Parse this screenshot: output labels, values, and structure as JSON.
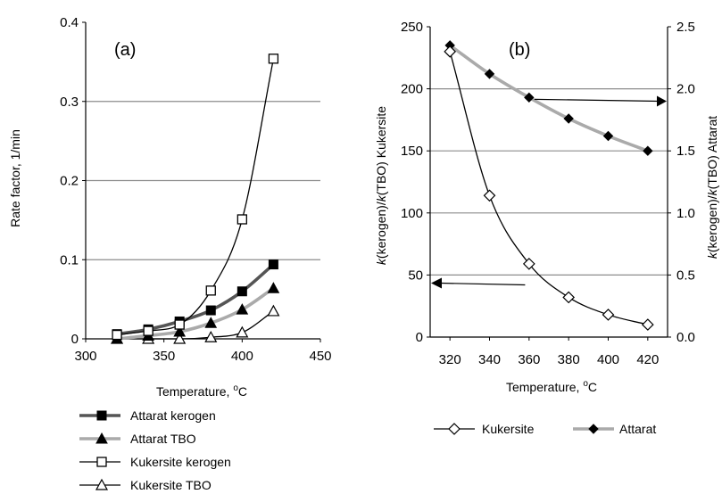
{
  "chart_data": [
    {
      "type": "line",
      "panel_label": "(a)",
      "xlabel": "Temperature, ",
      "xlabel_sup": "o",
      "xlabel_unit": "C",
      "ylabel": "Rate factor, 1/min",
      "xlim": [
        300,
        450
      ],
      "ylim": [
        0,
        0.4
      ],
      "xticks": [
        "300",
        "350",
        "400",
        "450"
      ],
      "yticks": [
        "0",
        "0.1",
        "0.2",
        "0.3",
        "0.4"
      ],
      "grid": "horizontal",
      "legend_position": "below",
      "series": [
        {
          "name": "Attarat kerogen",
          "color": "#555555",
          "marker": "filled-square",
          "line_color": "#555555",
          "x": [
            320,
            340,
            360,
            380,
            400,
            420
          ],
          "y": [
            0.006,
            0.012,
            0.022,
            0.036,
            0.06,
            0.094
          ]
        },
        {
          "name": "Attarat TBO",
          "color": "#aaaaaa",
          "marker": "filled-triangle",
          "line_color": "#aaaaaa",
          "x": [
            320,
            340,
            360,
            380,
            400,
            420
          ],
          "y": [
            0.0,
            0.004,
            0.009,
            0.02,
            0.037,
            0.064
          ]
        },
        {
          "name": "Kukersite kerogen",
          "color": "#000000",
          "marker": "open-square",
          "line_color": "#000000",
          "x": [
            320,
            340,
            360,
            380,
            400,
            420
          ],
          "y": [
            0.005,
            0.01,
            0.018,
            0.061,
            0.151,
            0.354
          ]
        },
        {
          "name": "Kukersite TBO",
          "color": "#000000",
          "marker": "open-triangle",
          "line_color": "#000000",
          "x": [
            320,
            340,
            360,
            380,
            400,
            420
          ],
          "y": [
            0.0,
            0.0,
            0.0,
            0.002,
            0.008,
            0.035
          ]
        }
      ]
    },
    {
      "type": "line",
      "panel_label": "(b)",
      "xlabel": "Temperature, ",
      "xlabel_sup": "o",
      "xlabel_unit": "C",
      "ylabel_left": "k(kerogen)/k(TBO) Kukersite",
      "ylabel_right": "k(kerogen)/k(TBO) Attarat",
      "xlim": [
        310,
        430
      ],
      "xticks": [
        "320",
        "340",
        "360",
        "380",
        "400",
        "420"
      ],
      "ylim_left": [
        0,
        250
      ],
      "yticks_left": [
        "0",
        "50",
        "100",
        "150",
        "200",
        "250"
      ],
      "ylim_right": [
        0,
        2.5
      ],
      "yticks_right": [
        "0.0",
        "0.5",
        "1.0",
        "1.5",
        "2.0",
        "2.5"
      ],
      "grid": "horizontal",
      "legend_position": "below",
      "series": [
        {
          "name": "Kukersite",
          "axis": "left",
          "color": "#000000",
          "marker": "open-diamond",
          "line_color": "#000000",
          "x": [
            320,
            340,
            360,
            380,
            400,
            420
          ],
          "y": [
            230,
            114,
            59,
            32,
            18,
            10
          ]
        },
        {
          "name": "Attarat",
          "axis": "right",
          "color": "#000000",
          "marker": "filled-diamond",
          "line_color": "#aaaaaa",
          "x": [
            320,
            340,
            360,
            380,
            400,
            420
          ],
          "y": [
            2.35,
            2.12,
            1.93,
            1.76,
            1.62,
            1.5
          ]
        }
      ]
    }
  ]
}
